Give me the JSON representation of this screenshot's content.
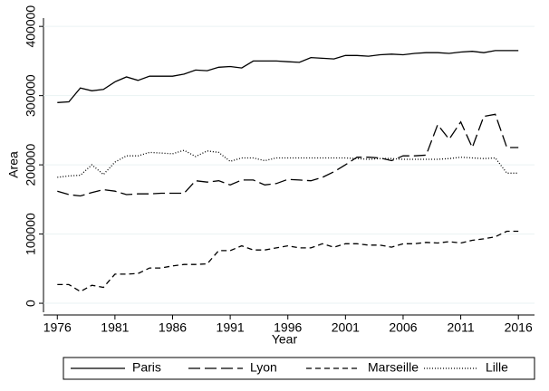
{
  "chart_data": {
    "type": "line",
    "x_label": "Year",
    "y_label": "Area",
    "x": [
      1976,
      1977,
      1978,
      1979,
      1980,
      1981,
      1982,
      1983,
      1984,
      1985,
      1986,
      1987,
      1988,
      1989,
      1990,
      1991,
      1992,
      1993,
      1994,
      1995,
      1996,
      1997,
      1998,
      1999,
      2000,
      2001,
      2002,
      2003,
      2004,
      2005,
      2006,
      2007,
      2008,
      2009,
      2010,
      2011,
      2012,
      2013,
      2014,
      2015,
      2016
    ],
    "series": [
      {
        "name": "Paris",
        "color": "#000000",
        "dash": "solid",
        "values": [
          290000,
          291000,
          311000,
          307000,
          309000,
          320000,
          327000,
          322000,
          328000,
          328000,
          328000,
          331000,
          337000,
          336000,
          341000,
          342000,
          340000,
          350000,
          350000,
          350000,
          349000,
          348000,
          355000,
          354000,
          353000,
          358000,
          358000,
          357000,
          359000,
          360000,
          359000,
          361000,
          362000,
          362000,
          361000,
          363000,
          364000,
          362000,
          365000,
          365000,
          365000
        ]
      },
      {
        "name": "Lyon",
        "color": "#000000",
        "dash": "longdash",
        "values": [
          162000,
          157000,
          155000,
          160000,
          164000,
          162000,
          157000,
          158000,
          158000,
          159000,
          159000,
          159000,
          177000,
          175000,
          177000,
          171000,
          178000,
          178000,
          171000,
          173000,
          179000,
          178000,
          177000,
          182000,
          190000,
          200000,
          211000,
          211000,
          210000,
          206000,
          213000,
          213000,
          214000,
          258000,
          237000,
          262000,
          225000,
          270000,
          273000,
          225000,
          225000
        ]
      },
      {
        "name": "Marseille",
        "color": "#000000",
        "dash": "dash",
        "values": [
          27000,
          27000,
          17000,
          26000,
          23000,
          42000,
          42000,
          43000,
          51000,
          51000,
          54000,
          56000,
          56000,
          57000,
          76000,
          76000,
          83000,
          77000,
          77000,
          80000,
          83000,
          80000,
          80000,
          86000,
          81000,
          86000,
          86000,
          84000,
          84000,
          81000,
          86000,
          86000,
          88000,
          87000,
          89000,
          87000,
          91000,
          93000,
          96000,
          104000,
          104000
        ]
      },
      {
        "name": "Lille",
        "color": "#000000",
        "dash": "dot",
        "values": [
          182000,
          184000,
          185000,
          200000,
          186000,
          204000,
          213000,
          213000,
          218000,
          217000,
          216000,
          221000,
          212000,
          220000,
          218000,
          205000,
          210000,
          210000,
          206000,
          210000,
          210000,
          210000,
          210000,
          210000,
          210000,
          210000,
          209000,
          208000,
          209000,
          209000,
          208000,
          208000,
          208000,
          208000,
          209000,
          211000,
          210000,
          209000,
          210000,
          188000,
          188000
        ]
      }
    ],
    "xlim": [
      1974.8,
      2017.4
    ],
    "xticks": [
      1976,
      1981,
      1986,
      1991,
      1996,
      2001,
      2006,
      2011,
      2016
    ],
    "ylim": [
      -13000,
      412000
    ],
    "yticks": [
      0,
      100000,
      200000,
      300000,
      400000
    ],
    "grid": true,
    "legend": "bottom"
  }
}
